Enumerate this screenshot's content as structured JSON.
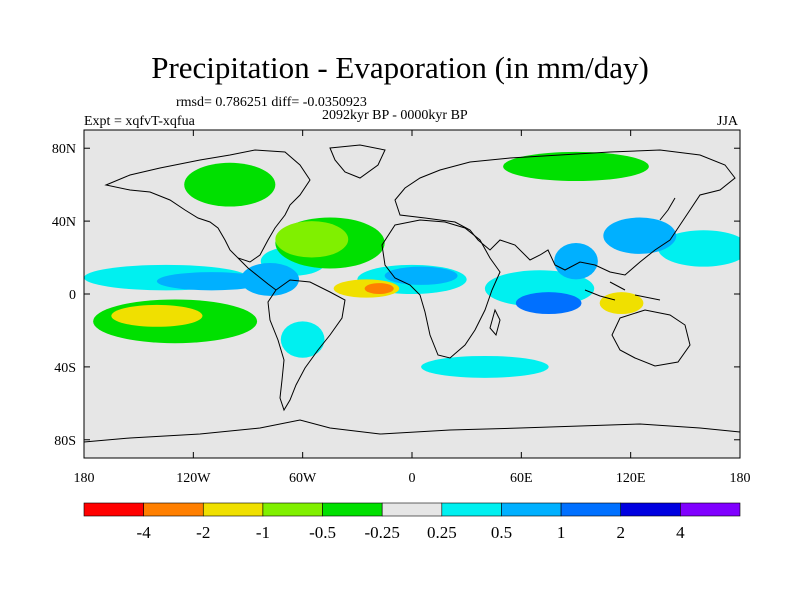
{
  "title": "Precipitation - Evaporation (in mm/day)",
  "stats": "rmsd= 0.786251  diff= -0.0350923",
  "period": "2092kyr BP - 0000kyr BP",
  "experiment": "Expt = xqfvT-xqfua",
  "season": "JJA",
  "map": {
    "projection": "cylindrical-equidistant",
    "lon_range": [
      -180,
      180
    ],
    "lat_range": [
      -90,
      90
    ],
    "x_ticks": [
      {
        "lon": -180,
        "label": "180"
      },
      {
        "lon": -120,
        "label": "120W"
      },
      {
        "lon": -60,
        "label": "60W"
      },
      {
        "lon": 0,
        "label": "0"
      },
      {
        "lon": 60,
        "label": "60E"
      },
      {
        "lon": 120,
        "label": "120E"
      },
      {
        "lon": 180,
        "label": "180"
      }
    ],
    "y_ticks": [
      {
        "lat": 80,
        "label": "80N"
      },
      {
        "lat": 40,
        "label": "40N"
      },
      {
        "lat": 0,
        "label": "0"
      },
      {
        "lat": -40,
        "label": "40S"
      },
      {
        "lat": -80,
        "label": "80S"
      }
    ],
    "background_color": "#e6e6e6",
    "features": [
      {
        "name": "pacific-itcz-positive",
        "level": 2,
        "lon": -110,
        "lat": 7,
        "rlon": 30,
        "rlat": 5
      },
      {
        "name": "pacific-itcz-band",
        "level": 1,
        "lon": -135,
        "lat": 9,
        "rlon": 45,
        "rlat": 7
      },
      {
        "name": "central-america-positive",
        "level": 2,
        "lon": -78,
        "lat": 8,
        "rlon": 16,
        "rlat": 9
      },
      {
        "name": "caribbean-positive",
        "level": 1,
        "lon": -65,
        "lat": 18,
        "rlon": 18,
        "rlat": 8
      },
      {
        "name": "south-pacific-negative",
        "level": -3,
        "lon": -140,
        "lat": -12,
        "rlon": 25,
        "rlat": 6
      },
      {
        "name": "south-pacific-dry-band",
        "level": -1,
        "lon": -130,
        "lat": -15,
        "rlon": 45,
        "rlat": 12
      },
      {
        "name": "north-atlantic-dry",
        "level": -2,
        "lon": -55,
        "lat": 30,
        "rlon": 20,
        "rlat": 10
      },
      {
        "name": "north-atlantic-green",
        "level": -1,
        "lon": -45,
        "lat": 28,
        "rlon": 30,
        "rlat": 14
      },
      {
        "name": "atlantic-itcz-negative",
        "level": -3,
        "lon": -25,
        "lat": 3,
        "rlon": 18,
        "rlat": 5
      },
      {
        "name": "atlantic-negative-core",
        "level": -4,
        "lon": -18,
        "lat": 3,
        "rlon": 8,
        "rlat": 3
      },
      {
        "name": "sahel-positive",
        "level": 2,
        "lon": 5,
        "lat": 10,
        "rlon": 20,
        "rlat": 5
      },
      {
        "name": "west-africa-positive",
        "level": 1,
        "lon": 0,
        "lat": 8,
        "rlon": 30,
        "rlat": 8
      },
      {
        "name": "indian-ocean-positive",
        "level": 3,
        "lon": 75,
        "lat": -5,
        "rlon": 18,
        "rlat": 6
      },
      {
        "name": "indian-ocean-band",
        "level": 1,
        "lon": 70,
        "lat": 3,
        "rlon": 30,
        "rlat": 10
      },
      {
        "name": "bay-of-bengal-positive",
        "level": 2,
        "lon": 90,
        "lat": 18,
        "rlon": 12,
        "rlat": 10
      },
      {
        "name": "east-asia-positive",
        "level": 2,
        "lon": 125,
        "lat": 32,
        "rlon": 20,
        "rlat": 10
      },
      {
        "name": "maritime-continent-negative",
        "level": -3,
        "lon": 115,
        "lat": -5,
        "rlon": 12,
        "rlat": 6
      },
      {
        "name": "north-pacific-positive",
        "level": 1,
        "lon": 160,
        "lat": 25,
        "rlon": 25,
        "rlat": 10
      },
      {
        "name": "southern-ocean-band",
        "level": 1,
        "lon": 40,
        "lat": -40,
        "rlon": 35,
        "rlat": 6
      },
      {
        "name": "siberia-dry",
        "level": -1,
        "lon": 90,
        "lat": 70,
        "rlon": 40,
        "rlat": 8
      },
      {
        "name": "north-america-dry",
        "level": -1,
        "lon": -100,
        "lat": 60,
        "rlon": 25,
        "rlat": 12
      },
      {
        "name": "south-america-wet",
        "level": 1,
        "lon": -60,
        "lat": -25,
        "rlon": 12,
        "rlat": 10
      }
    ]
  },
  "colorbar": {
    "colors": [
      "#ff0000",
      "#ff7f00",
      "#f0e000",
      "#80f000",
      "#00e000",
      "#e6e6e6",
      "#00f0f0",
      "#00b0ff",
      "#0070ff",
      "#0000e0",
      "#8000ff"
    ],
    "levels": [
      "-4",
      "-2",
      "-1",
      "-0.5",
      "-0.25",
      "0.25",
      "0.5",
      "1",
      "2",
      "4"
    ]
  }
}
